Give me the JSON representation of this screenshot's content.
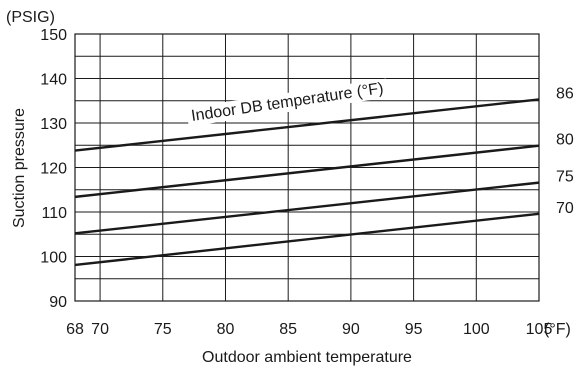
{
  "chart_data": {
    "type": "line",
    "unit_label": "(PSIG)",
    "xlabel": "Outdoor ambient temperature",
    "ylabel": "Suction pressure",
    "x_unit_suffix": "(°F)",
    "xlim": [
      68,
      105
    ],
    "ylim": [
      90,
      150
    ],
    "x_ticks": [
      {
        "value": 68,
        "label": "68"
      },
      {
        "value": 70,
        "label": "70"
      },
      {
        "value": 75,
        "label": "75"
      },
      {
        "value": 80,
        "label": "80"
      },
      {
        "value": 85,
        "label": "85"
      },
      {
        "value": 90,
        "label": "90"
      },
      {
        "value": 95,
        "label": "95"
      },
      {
        "value": 100,
        "label": "100"
      },
      {
        "value": 105,
        "label": "105"
      }
    ],
    "y_ticks": [
      {
        "value": 90,
        "label": "90"
      },
      {
        "value": 100,
        "label": "100"
      },
      {
        "value": 110,
        "label": "110"
      },
      {
        "value": 120,
        "label": "120"
      },
      {
        "value": 130,
        "label": "130"
      },
      {
        "value": 140,
        "label": "140"
      },
      {
        "value": 150,
        "label": "150"
      }
    ],
    "grid": true,
    "annotation": "Indoor DB temperature (°F)",
    "series": [
      {
        "name": "86",
        "x": [
          68,
          105
        ],
        "y": [
          123.8,
          135.3
        ]
      },
      {
        "name": "80",
        "x": [
          68,
          105
        ],
        "y": [
          113.4,
          124.9
        ]
      },
      {
        "name": "75",
        "x": [
          68,
          105
        ],
        "y": [
          105.2,
          116.6
        ]
      },
      {
        "name": "70",
        "x": [
          68,
          105
        ],
        "y": [
          98.1,
          109.6
        ]
      }
    ]
  }
}
